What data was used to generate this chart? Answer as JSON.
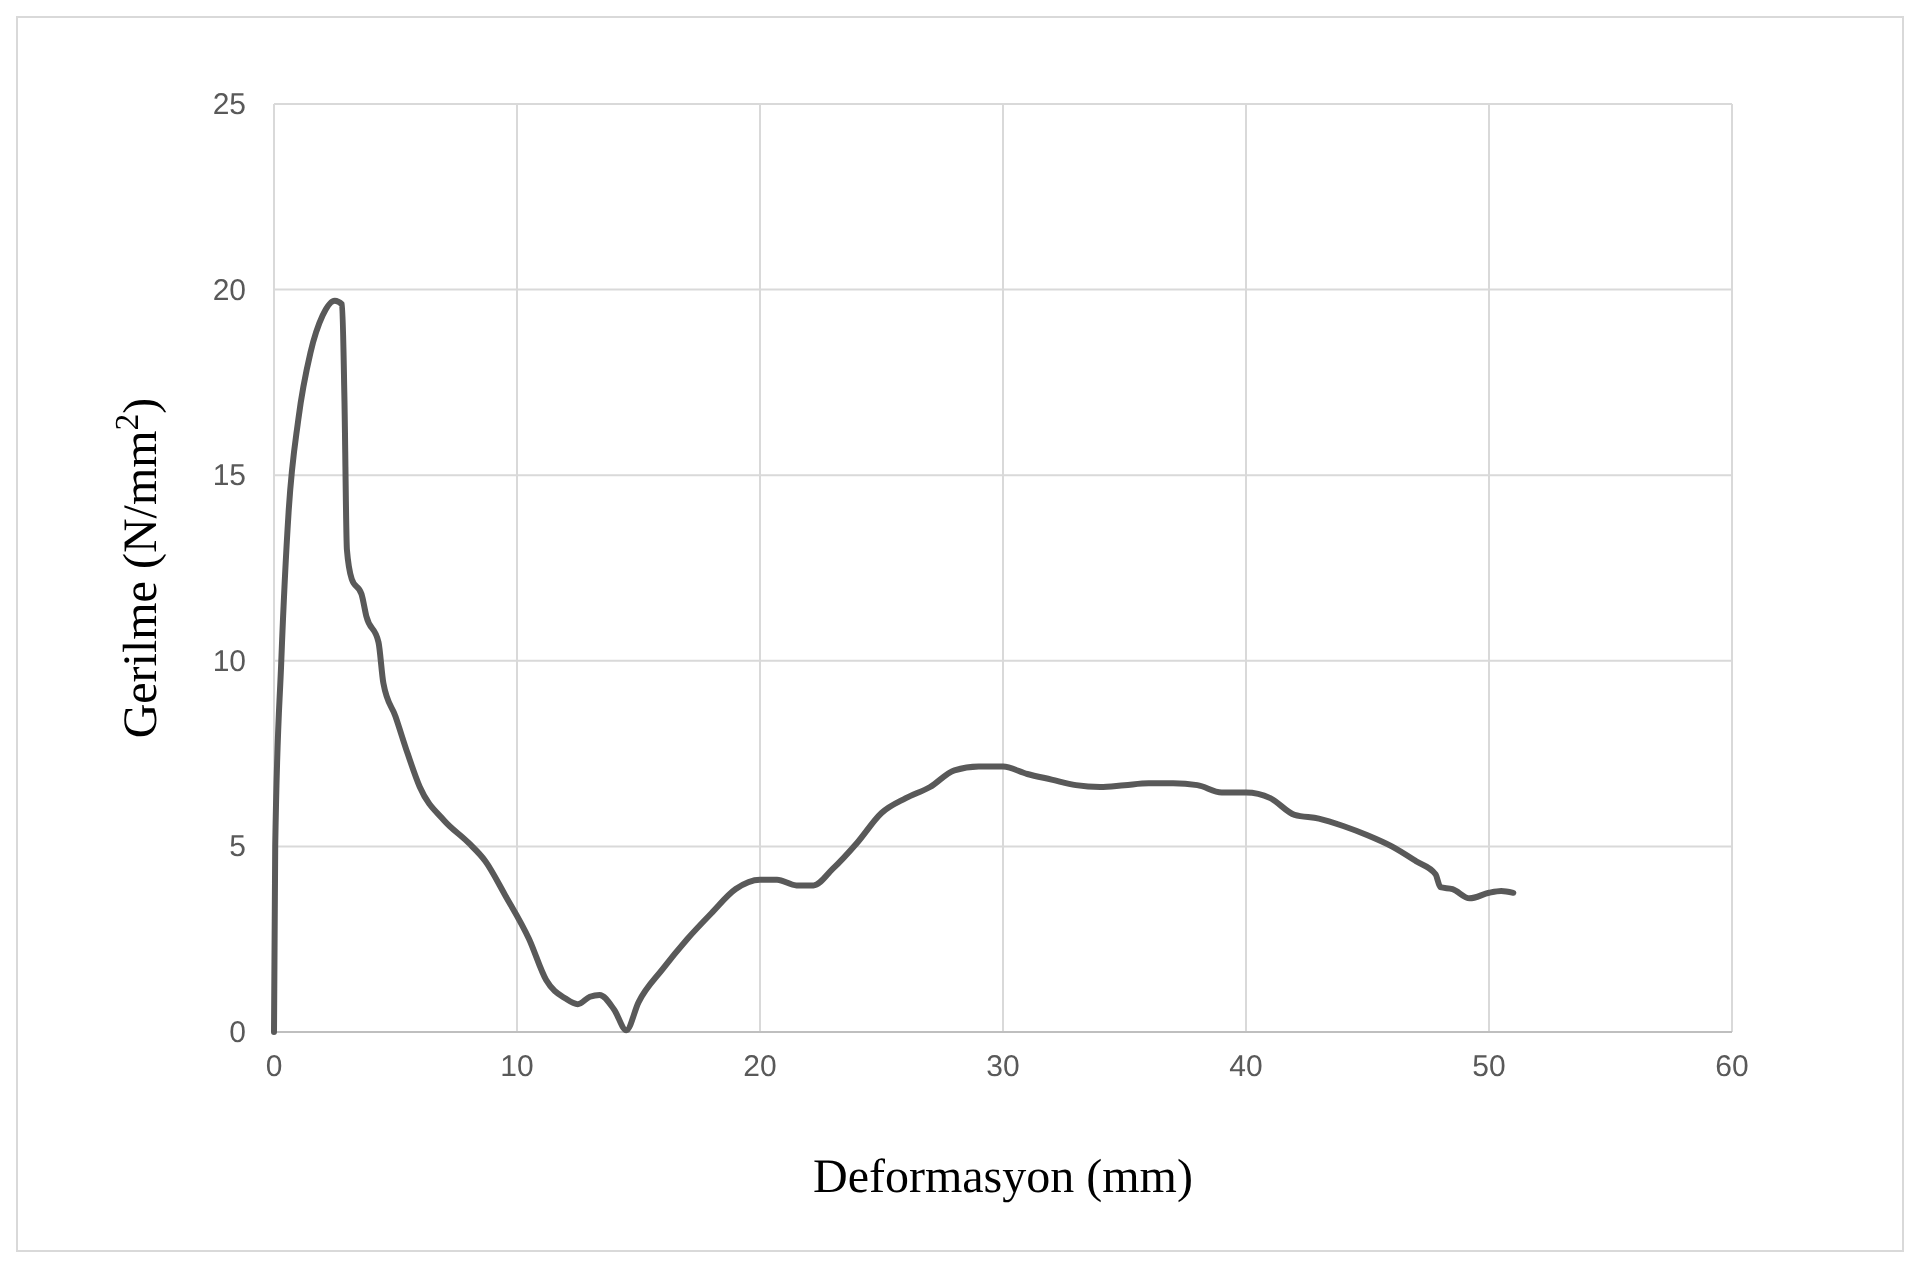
{
  "chart_data": {
    "type": "line",
    "xlabel": "Deformasyon (mm)",
    "ylabel": "Gerilme (N/mm$^{2}$)",
    "xlim": [
      0,
      60
    ],
    "xticks": [
      0,
      10,
      20,
      30,
      40,
      50,
      60
    ],
    "ylim": [
      0,
      25
    ],
    "yticks": [
      0,
      5,
      10,
      15,
      20,
      25
    ],
    "grid": true,
    "marker": "none",
    "line_style": "solid",
    "series": [
      {
        "color": "#595959",
        "x": [
          0,
          0.05,
          0.3,
          0.6,
          1,
          1.5,
          2,
          2.5,
          2.8,
          2.9,
          3,
          3.2,
          3.6,
          3.8,
          4.3,
          4.5,
          5,
          5.5,
          6,
          7,
          8,
          8.7,
          9.5,
          10.5,
          11.2,
          12,
          12.5,
          13,
          13.4,
          14,
          14.5,
          15,
          16,
          17,
          18,
          19,
          20,
          20.7,
          21.5,
          22.2,
          23,
          24,
          25,
          26,
          27,
          28,
          29,
          30,
          31,
          32,
          33,
          34,
          35,
          36,
          37,
          38,
          39,
          40,
          41,
          42,
          43,
          44,
          45,
          46,
          47,
          47.8,
          48,
          48.5,
          49.2,
          50,
          50.5,
          51
        ],
        "values": [
          0,
          5,
          10,
          14,
          16.5,
          18.3,
          19.3,
          19.7,
          19.6,
          17,
          13,
          12.2,
          11.8,
          11.2,
          10.5,
          9.4,
          8.5,
          7.5,
          6.6,
          5.7,
          5.1,
          4.6,
          3.7,
          2.5,
          1.4,
          0.9,
          0.75,
          0.95,
          1,
          0.6,
          0.05,
          0.8,
          1.7,
          2.5,
          3.2,
          3.85,
          4.1,
          4.1,
          3.95,
          3.95,
          4.4,
          5.1,
          5.9,
          6.3,
          6.6,
          7.05,
          7.15,
          7.15,
          6.95,
          6.8,
          6.65,
          6.6,
          6.65,
          6.7,
          6.7,
          6.65,
          6.45,
          6.45,
          6.3,
          5.85,
          5.75,
          5.55,
          5.3,
          5,
          4.6,
          4.25,
          3.9,
          3.85,
          3.6,
          3.75,
          3.8,
          3.75
        ]
      }
    ]
  }
}
